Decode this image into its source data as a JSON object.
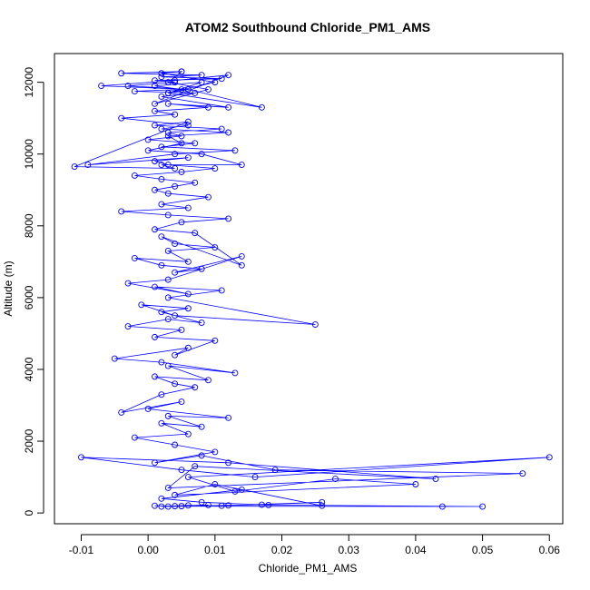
{
  "chart_data": {
    "type": "line",
    "title": "ATOM2 Southbound Chloride_PM1_AMS",
    "xlabel": "Chloride_PM1_AMS",
    "ylabel": "Altitude (m)",
    "xlim": [
      -0.014,
      0.062
    ],
    "ylim": [
      -300,
      12800
    ],
    "xticks": [
      -0.01,
      0.0,
      0.01,
      0.02,
      0.03,
      0.04,
      0.05,
      0.06
    ],
    "xtick_labels": [
      "-0.01",
      "0.00",
      "0.01",
      "0.02",
      "0.03",
      "0.04",
      "0.05",
      "0.06"
    ],
    "yticks": [
      0,
      2000,
      4000,
      6000,
      8000,
      10000,
      12000
    ],
    "ytick_labels": [
      "0",
      "2000",
      "4000",
      "6000",
      "8000",
      "10000",
      "12000"
    ],
    "grid": false,
    "legend": "none",
    "series": [
      {
        "color": "#0000ff",
        "marker": "open-circle",
        "x": [
          0.001,
          0.004,
          0.009,
          0.002,
          0.006,
          0.011,
          0.003,
          0.017,
          0.026,
          0.012,
          0.005,
          0.044,
          0.05,
          0.018,
          0.008,
          0.002,
          0.014,
          0.026,
          0.01,
          0.004,
          0.04,
          0.028,
          0.013,
          0.006,
          0.06,
          0.016,
          0.005,
          -0.01,
          0.012,
          0.043,
          0.007,
          0.003,
          0.056,
          0.019,
          0.008,
          0.001,
          0.01,
          0.004,
          -0.002,
          0.006,
          0.002,
          0.008,
          0.003,
          0.012,
          0.0,
          0.005,
          -0.004,
          0.002,
          0.007,
          0.004,
          0.001,
          0.009,
          0.003,
          0.013,
          0.002,
          -0.005,
          0.006,
          0.004,
          0.01,
          0.001,
          0.005,
          -0.003,
          0.003,
          0.008,
          0.002,
          0.006,
          -0.001,
          0.004,
          0.025,
          0.003,
          0.011,
          0.001,
          0.006,
          -0.003,
          0.003,
          0.014,
          0.004,
          0.008,
          0.002,
          -0.002,
          0.006,
          0.003,
          0.01,
          0.004,
          0.002,
          0.014,
          0.007,
          0.001,
          0.005,
          0.012,
          0.003,
          -0.004,
          0.006,
          0.002,
          0.009,
          0.003,
          0.001,
          0.004,
          0.007,
          0.002,
          -0.002,
          0.005,
          0.01,
          0.003,
          0.001,
          0.006,
          -0.009,
          0.004,
          0.013,
          0.002,
          0.007,
          0.0,
          0.005,
          0.003,
          0.011,
          0.001,
          0.006,
          -0.011,
          0.004,
          0.002,
          0.014,
          0.008,
          0.0,
          0.005,
          0.003,
          0.012,
          0.002,
          0.006,
          -0.004,
          0.004,
          0.001,
          0.009,
          0.003,
          0.012,
          0.002,
          0.007,
          -0.002,
          0.005,
          0.001,
          0.008,
          0.003,
          0.017,
          0.006,
          -0.003,
          0.004,
          0.001,
          0.011,
          0.002,
          0.008,
          -0.004,
          0.005,
          0.003,
          0.009,
          0.001,
          0.012,
          0.004,
          -0.007,
          0.006,
          0.003,
          0.01,
          0.002,
          0.005
        ],
        "y": [
          200,
          190,
          220,
          180,
          210,
          200,
          180,
          230,
          300,
          210,
          190,
          180,
          180,
          220,
          300,
          400,
          650,
          200,
          800,
          500,
          800,
          950,
          600,
          1000,
          1550,
          1000,
          1200,
          1550,
          1400,
          950,
          1300,
          700,
          1100,
          1200,
          1600,
          1400,
          1700,
          1900,
          2100,
          2200,
          2500,
          2400,
          2700,
          2650,
          2900,
          3100,
          2800,
          3300,
          3500,
          3600,
          3800,
          3700,
          4100,
          3900,
          4200,
          4300,
          4600,
          4400,
          4800,
          4900,
          5100,
          5200,
          5400,
          5300,
          5600,
          5700,
          5800,
          5500,
          5250,
          6000,
          6200,
          6300,
          6100,
          6400,
          6500,
          7150,
          6700,
          6800,
          6900,
          7100,
          7000,
          7300,
          7400,
          7500,
          7700,
          6900,
          7800,
          7900,
          8100,
          8200,
          8300,
          8400,
          8500,
          8600,
          8800,
          8900,
          9000,
          9100,
          9200,
          9300,
          9400,
          9500,
          9600,
          9700,
          9800,
          9900,
          9700,
          10000,
          10100,
          10200,
          10300,
          10400,
          10500,
          10600,
          10700,
          10800,
          10900,
          9650,
          9600,
          9700,
          9700,
          10000,
          10100,
          10300,
          10500,
          10600,
          10700,
          10800,
          11000,
          11100,
          11200,
          11300,
          11400,
          11300,
          11600,
          11700,
          11750,
          11800,
          11900,
          12000,
          11700,
          11300,
          11800,
          11900,
          12000,
          12050,
          12100,
          12150,
          12200,
          12250,
          12300,
          12000,
          11800,
          11400,
          12200,
          12050,
          11900,
          11800,
          11700,
          12000,
          12250,
          12300
        ]
      }
    ]
  }
}
